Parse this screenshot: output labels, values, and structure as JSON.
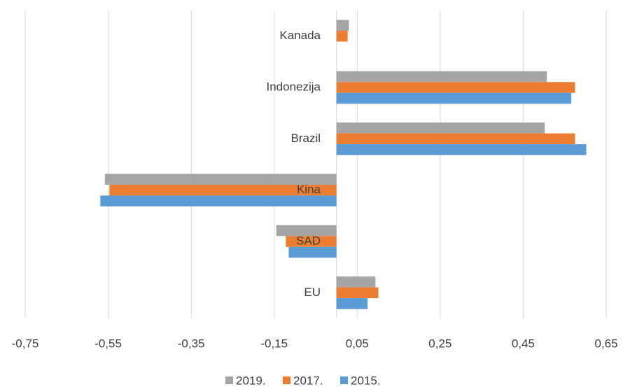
{
  "chart_data": {
    "type": "hbar",
    "categories": [
      "Kanada",
      "Indonezija",
      "Brazil",
      "Kina",
      "SAD",
      "EU"
    ],
    "series": [
      {
        "name": "2019.",
        "color": "#a5a5a5",
        "values": [
          0.03,
          0.507,
          0.502,
          -0.558,
          -0.145,
          0.094
        ]
      },
      {
        "name": "2017.",
        "color": "#ed7d31",
        "values": [
          0.027,
          0.575,
          0.575,
          -0.547,
          -0.122,
          0.101
        ]
      },
      {
        "name": "2015.",
        "color": "#5b9bd5",
        "values": [
          0,
          0.566,
          0.602,
          -0.569,
          -0.115,
          0.075
        ]
      }
    ],
    "xlim": [
      -0.75,
      0.65
    ],
    "xticks": [
      {
        "value": -0.75,
        "label": "-0,75"
      },
      {
        "value": -0.55,
        "label": "-0,55"
      },
      {
        "value": -0.35,
        "label": "-0,35"
      },
      {
        "value": -0.15,
        "label": "-0,15"
      },
      {
        "value": 0.05,
        "label": "0,05"
      },
      {
        "value": 0.25,
        "label": "0,25"
      },
      {
        "value": 0.45,
        "label": "0,45"
      },
      {
        "value": 0.65,
        "label": "0,65"
      }
    ],
    "grid": true,
    "legend": "bottom"
  }
}
